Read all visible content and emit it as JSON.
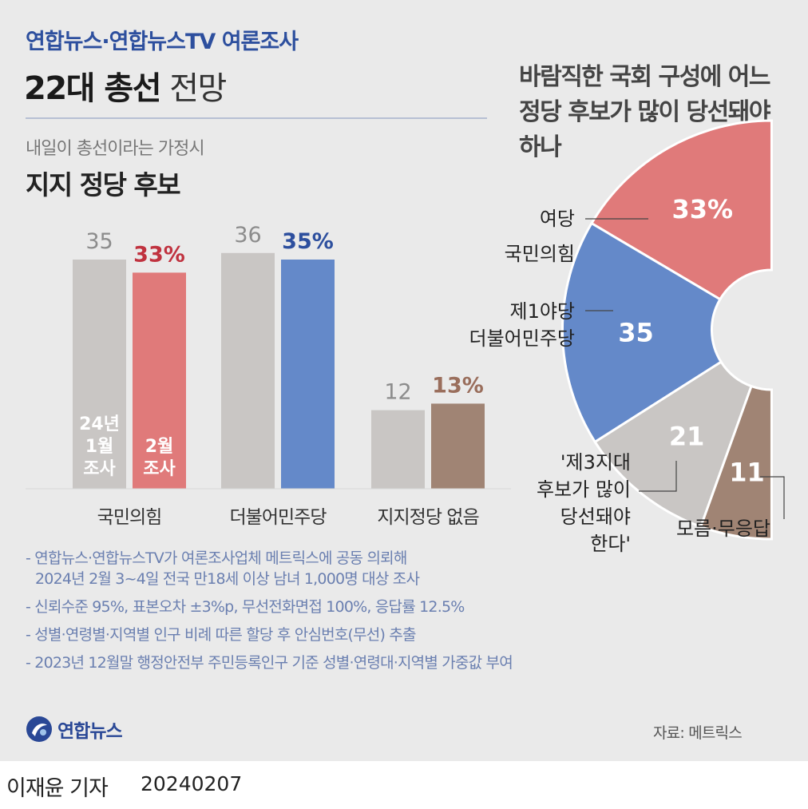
{
  "header": {
    "kicker": "연합뉴스·연합뉴스TV 여론조사",
    "title_bold": "22대 총선",
    "title_light": "전망"
  },
  "bar_section": {
    "subtitle": "내일이 총선이라는 가정시",
    "title": "지지 정당 후보"
  },
  "donut_section": {
    "title": "바람직한 국회 구성에 어느 정당 후보가 많이 당선돼야 하나"
  },
  "chart_data": [
    {
      "type": "bar",
      "categories": [
        "국민의힘",
        "더불어민주당",
        "지지정당 없음"
      ],
      "series": [
        {
          "name": "24년 1월 조사",
          "values": [
            35,
            36,
            12
          ],
          "value_labels": [
            "35",
            "36",
            "12"
          ],
          "color": "#c9c6c4",
          "label_color": "#8c8c8c"
        },
        {
          "name": "2월 조사",
          "values": [
            33,
            35,
            13
          ],
          "value_labels": [
            "33%",
            "35%",
            "13%"
          ],
          "colors": [
            "#e07a7a",
            "#6489c9",
            "#a08474"
          ],
          "label_colors": [
            "#c0323f",
            "#2d4f9e",
            "#9a6e5c"
          ]
        }
      ],
      "in_bar_labels": {
        "jan": [
          "24년",
          "1월",
          "조사"
        ],
        "feb": [
          "2월",
          "조사"
        ]
      },
      "ylim": [
        0,
        40
      ],
      "grid": false
    },
    {
      "type": "pie",
      "style": "half-donut",
      "slices": [
        {
          "label_lines": [
            "여당",
            "국민의힘"
          ],
          "value": 33,
          "value_label": "33%",
          "color": "#e07a7a"
        },
        {
          "label_lines": [
            "제1야당",
            "더불어민주당"
          ],
          "value": 35,
          "value_label": "35",
          "color": "#6489c9"
        },
        {
          "label_lines": [
            "'제3지대",
            "후보가 많이",
            "당선돼야",
            "한다'"
          ],
          "value": 21,
          "value_label": "21",
          "color": "#c9c6c4"
        },
        {
          "label_lines": [
            "모름·무응답"
          ],
          "value": 11,
          "value_label": "11",
          "color": "#a08474"
        }
      ]
    }
  ],
  "notes": [
    [
      "- 연합뉴스·연합뉴스TV가 여론조사업체 메트릭스에 공동 의뢰해",
      "2024년 2월 3~4일 전국 만18세 이상 남녀 1,000명 대상 조사"
    ],
    [
      "- 신뢰수준 95%, 표본오차 ±3%p, 무선전화면접 100%, 응답률 12.5%"
    ],
    [
      "- 성별·연령별·지역별 인구 비례 따른 할당 후 안심번호(무선) 추출"
    ],
    [
      "- 2023년 12월말 행정안전부 주민등록인구 기준 성별·연령대·지역별 가중값 부여"
    ]
  ],
  "footer": {
    "logo_text": "연합뉴스",
    "logo_icon": "yonhap-logo-icon",
    "source": "자료: 메트릭스",
    "reporter": "이재윤 기자",
    "date": "20240207"
  }
}
